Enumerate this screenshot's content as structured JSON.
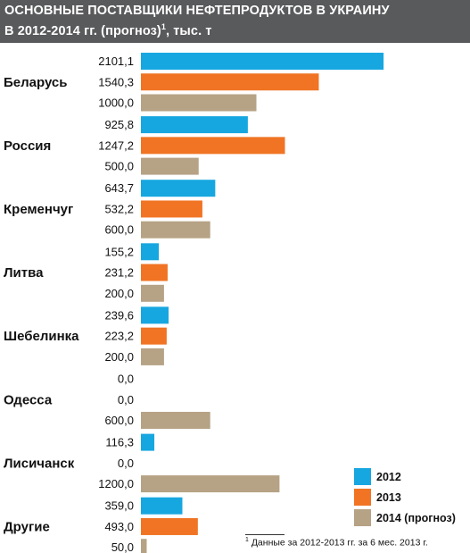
{
  "header": {
    "title_line1": "ОСНОВНЫЕ ПОСТАВЩИКИ НЕФТЕПРОДУКТОВ В УКРАИНУ",
    "title_line2_a": "В 2012-2014 гг. (прогноз)",
    "title_line2_sup": "1",
    "title_line2_b": ", тыс. т"
  },
  "footnote": {
    "marker": "1",
    "text": " Данные за 2012-2013 гг. за 6 мес. 2013 г."
  },
  "chart_data": {
    "type": "bar",
    "orientation": "horizontal",
    "categories": [
      "Беларусь",
      "Россия",
      "Кременчуг",
      "Литва",
      "Шебелинка",
      "Одесса",
      "Лисичанск",
      "Другие"
    ],
    "series": [
      {
        "name": "2012",
        "color": "#17a7e0",
        "values": [
          2101.1,
          925.8,
          643.7,
          155.2,
          239.6,
          0.0,
          116.3,
          359.0
        ]
      },
      {
        "name": "2013",
        "color": "#f07424",
        "values": [
          1540.3,
          1247.2,
          532.2,
          231.2,
          223.2,
          0.0,
          0.0,
          493.0
        ]
      },
      {
        "name": "2014 (прогноз)",
        "color": "#b6a285",
        "values": [
          1000.0,
          500.0,
          600.0,
          200.0,
          200.0,
          600.0,
          1200.0,
          50.0
        ]
      }
    ],
    "value_labels": [
      [
        "2101,1",
        "1540,3",
        "1000,0"
      ],
      [
        "925,8",
        "1247,2",
        "500,0"
      ],
      [
        "643,7",
        "532,2",
        "600,0"
      ],
      [
        "155,2",
        "231,2",
        "200,0"
      ],
      [
        "239,6",
        "223,2",
        "200,0"
      ],
      [
        "0,0",
        "0,0",
        "600,0"
      ],
      [
        "116,3",
        "0,0",
        "1200,0"
      ],
      [
        "359,0",
        "493,0",
        "50,0"
      ]
    ],
    "legend_position": "bottom-right"
  }
}
